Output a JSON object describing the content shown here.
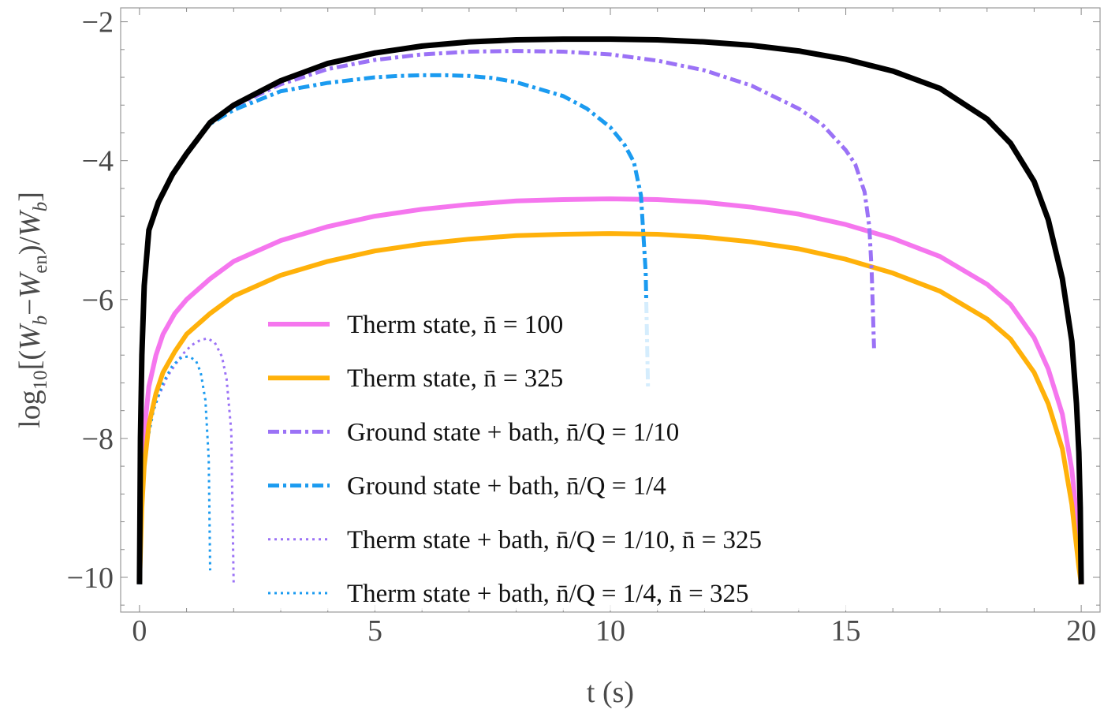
{
  "chart_data": {
    "type": "line",
    "title": "",
    "xlabel": "t (s)",
    "ylabel": "log₁₀[(W_b − W_en)/W_b]",
    "ylabel_parts": {
      "prefix": "log",
      "sub10": "10",
      "open": "[(",
      "w1": "W",
      "b1": "b",
      "minus": "−",
      "w2": "W",
      "en": "en",
      "close": ")/",
      "w3": "W",
      "b2": "b",
      "end": "]"
    },
    "xlim": [
      -0.4,
      20.4
    ],
    "ylim": [
      -10.5,
      -1.8
    ],
    "x_ticks": [
      0,
      5,
      10,
      15,
      20
    ],
    "x_tick_labels": [
      "0",
      "5",
      "10",
      "15",
      "20"
    ],
    "y_ticks": [
      -10,
      -8,
      -6,
      -4,
      -2
    ],
    "y_tick_labels": [
      "−10",
      "−8",
      "−6",
      "−4",
      "−2"
    ],
    "legend_position": "center-left",
    "series": [
      {
        "name": "Black (no bath)",
        "color": "#000000",
        "style": "solid",
        "in_legend": false,
        "x": [
          0,
          0.02,
          0.05,
          0.1,
          0.2,
          0.4,
          0.7,
          1,
          1.5,
          2,
          3,
          4,
          5,
          6,
          7,
          8,
          9,
          10,
          11,
          12,
          13,
          14,
          15,
          16,
          17,
          18,
          18.5,
          19,
          19.3,
          19.6,
          19.8,
          19.9,
          19.95,
          19.98,
          20
        ],
        "y": [
          -10.1,
          -8,
          -6.8,
          -5.8,
          -5,
          -4.6,
          -4.2,
          -3.9,
          -3.45,
          -3.2,
          -2.85,
          -2.6,
          -2.45,
          -2.35,
          -2.29,
          -2.26,
          -2.25,
          -2.25,
          -2.26,
          -2.29,
          -2.34,
          -2.42,
          -2.54,
          -2.71,
          -2.96,
          -3.4,
          -3.75,
          -4.3,
          -4.85,
          -5.7,
          -6.6,
          -7.5,
          -8.2,
          -9.0,
          -10.1
        ],
        "legend_label": ""
      },
      {
        "name": "Therm state n=100",
        "color": "#f576ee",
        "style": "solid",
        "in_legend": true,
        "legend_label": "Therm state, n̄ = 100",
        "x": [
          0,
          0.05,
          0.1,
          0.2,
          0.35,
          0.5,
          0.75,
          1,
          1.5,
          2,
          3,
          4,
          5,
          6,
          7,
          8,
          9,
          10,
          11,
          12,
          13,
          14,
          15,
          16,
          17,
          18,
          18.5,
          19,
          19.3,
          19.6,
          19.8,
          19.9,
          19.95,
          20
        ],
        "y": [
          -10.1,
          -8.6,
          -7.9,
          -7.25,
          -6.8,
          -6.5,
          -6.2,
          -6.0,
          -5.7,
          -5.45,
          -5.15,
          -4.95,
          -4.8,
          -4.7,
          -4.63,
          -4.58,
          -4.56,
          -4.55,
          -4.56,
          -4.6,
          -4.67,
          -4.77,
          -4.92,
          -5.12,
          -5.38,
          -5.78,
          -6.07,
          -6.55,
          -7.0,
          -7.65,
          -8.45,
          -9.1,
          -9.5,
          -10.1
        ]
      },
      {
        "name": "Therm state n=325",
        "color": "#ffb10a",
        "style": "solid",
        "in_legend": true,
        "legend_label": "Therm state, n̄ = 325",
        "x": [
          0,
          0.05,
          0.1,
          0.2,
          0.35,
          0.5,
          0.75,
          1,
          1.5,
          2,
          3,
          4,
          5,
          6,
          7,
          8,
          9,
          10,
          11,
          12,
          13,
          14,
          15,
          16,
          17,
          18,
          18.5,
          19,
          19.3,
          19.6,
          19.8,
          19.9,
          19.95,
          20
        ],
        "y": [
          -10.1,
          -9.0,
          -8.4,
          -7.8,
          -7.35,
          -7.05,
          -6.75,
          -6.5,
          -6.2,
          -5.95,
          -5.65,
          -5.45,
          -5.3,
          -5.2,
          -5.13,
          -5.08,
          -5.06,
          -5.05,
          -5.06,
          -5.1,
          -5.17,
          -5.27,
          -5.42,
          -5.62,
          -5.88,
          -6.28,
          -6.57,
          -7.05,
          -7.5,
          -8.15,
          -8.95,
          -9.55,
          -9.85,
          -10.1
        ]
      },
      {
        "name": "Ground state + bath 1/10",
        "color": "#9b72f6",
        "style": "dotdash",
        "in_legend": true,
        "legend_label": "Ground state + bath, n̄/Q = 1/10",
        "x": [
          0,
          0.02,
          0.05,
          0.1,
          0.2,
          0.4,
          0.7,
          1,
          1.5,
          2,
          3,
          4,
          5,
          6,
          7,
          8,
          9,
          10,
          11,
          12,
          13,
          14,
          14.5,
          15,
          15.2,
          15.4,
          15.5,
          15.55,
          15.6
        ],
        "y": [
          -10.1,
          -8,
          -6.8,
          -5.8,
          -5,
          -4.6,
          -4.2,
          -3.9,
          -3.45,
          -3.22,
          -2.9,
          -2.68,
          -2.55,
          -2.47,
          -2.43,
          -2.42,
          -2.43,
          -2.47,
          -2.56,
          -2.7,
          -2.92,
          -3.25,
          -3.48,
          -3.85,
          -4.05,
          -4.45,
          -4.95,
          -5.6,
          -6.7
        ]
      },
      {
        "name": "Ground state + bath 1/4",
        "color": "#1b9bf0",
        "style": "dotdash",
        "in_legend": true,
        "legend_label": "Ground state + bath, n̄/Q = 1/4",
        "x": [
          0,
          0.02,
          0.05,
          0.1,
          0.2,
          0.4,
          0.7,
          1,
          1.5,
          2,
          3,
          4,
          5,
          5.5,
          6,
          6.5,
          7,
          7.5,
          8,
          9,
          9.5,
          10,
          10.3,
          10.5,
          10.65,
          10.75,
          10.8
        ],
        "y": [
          -10.1,
          -8,
          -6.8,
          -5.8,
          -5,
          -4.6,
          -4.2,
          -3.9,
          -3.47,
          -3.27,
          -3.0,
          -2.88,
          -2.8,
          -2.78,
          -2.77,
          -2.77,
          -2.78,
          -2.81,
          -2.87,
          -3.07,
          -3.25,
          -3.52,
          -3.77,
          -4.02,
          -4.5,
          -5.6,
          -7.3
        ]
      },
      {
        "name": "Therm + bath 1/10 n=325",
        "color": "#9b72f6",
        "style": "dotted",
        "in_legend": true,
        "legend_label": "Therm state + bath, n̄/Q = 1/10, n̄ = 325",
        "x": [
          0,
          0.1,
          0.3,
          0.6,
          0.9,
          1.1,
          1.3,
          1.45,
          1.6,
          1.75,
          1.85,
          1.95,
          2.0
        ],
        "y": [
          -10.1,
          -8.2,
          -7.55,
          -7.1,
          -6.8,
          -6.66,
          -6.58,
          -6.56,
          -6.62,
          -6.82,
          -7.15,
          -7.9,
          -10.1
        ]
      },
      {
        "name": "Therm + bath 1/4 n=325",
        "color": "#1b9bf0",
        "style": "dotted",
        "in_legend": true,
        "legend_label": "Therm state + bath, n̄/Q = 1/4, n̄ = 325",
        "x": [
          0,
          0.1,
          0.3,
          0.5,
          0.7,
          0.9,
          1.05,
          1.2,
          1.3,
          1.4,
          1.47,
          1.5
        ],
        "y": [
          -10.1,
          -8.3,
          -7.6,
          -7.2,
          -6.95,
          -6.83,
          -6.82,
          -6.88,
          -7.05,
          -7.45,
          -8.3,
          -9.9
        ]
      }
    ]
  }
}
